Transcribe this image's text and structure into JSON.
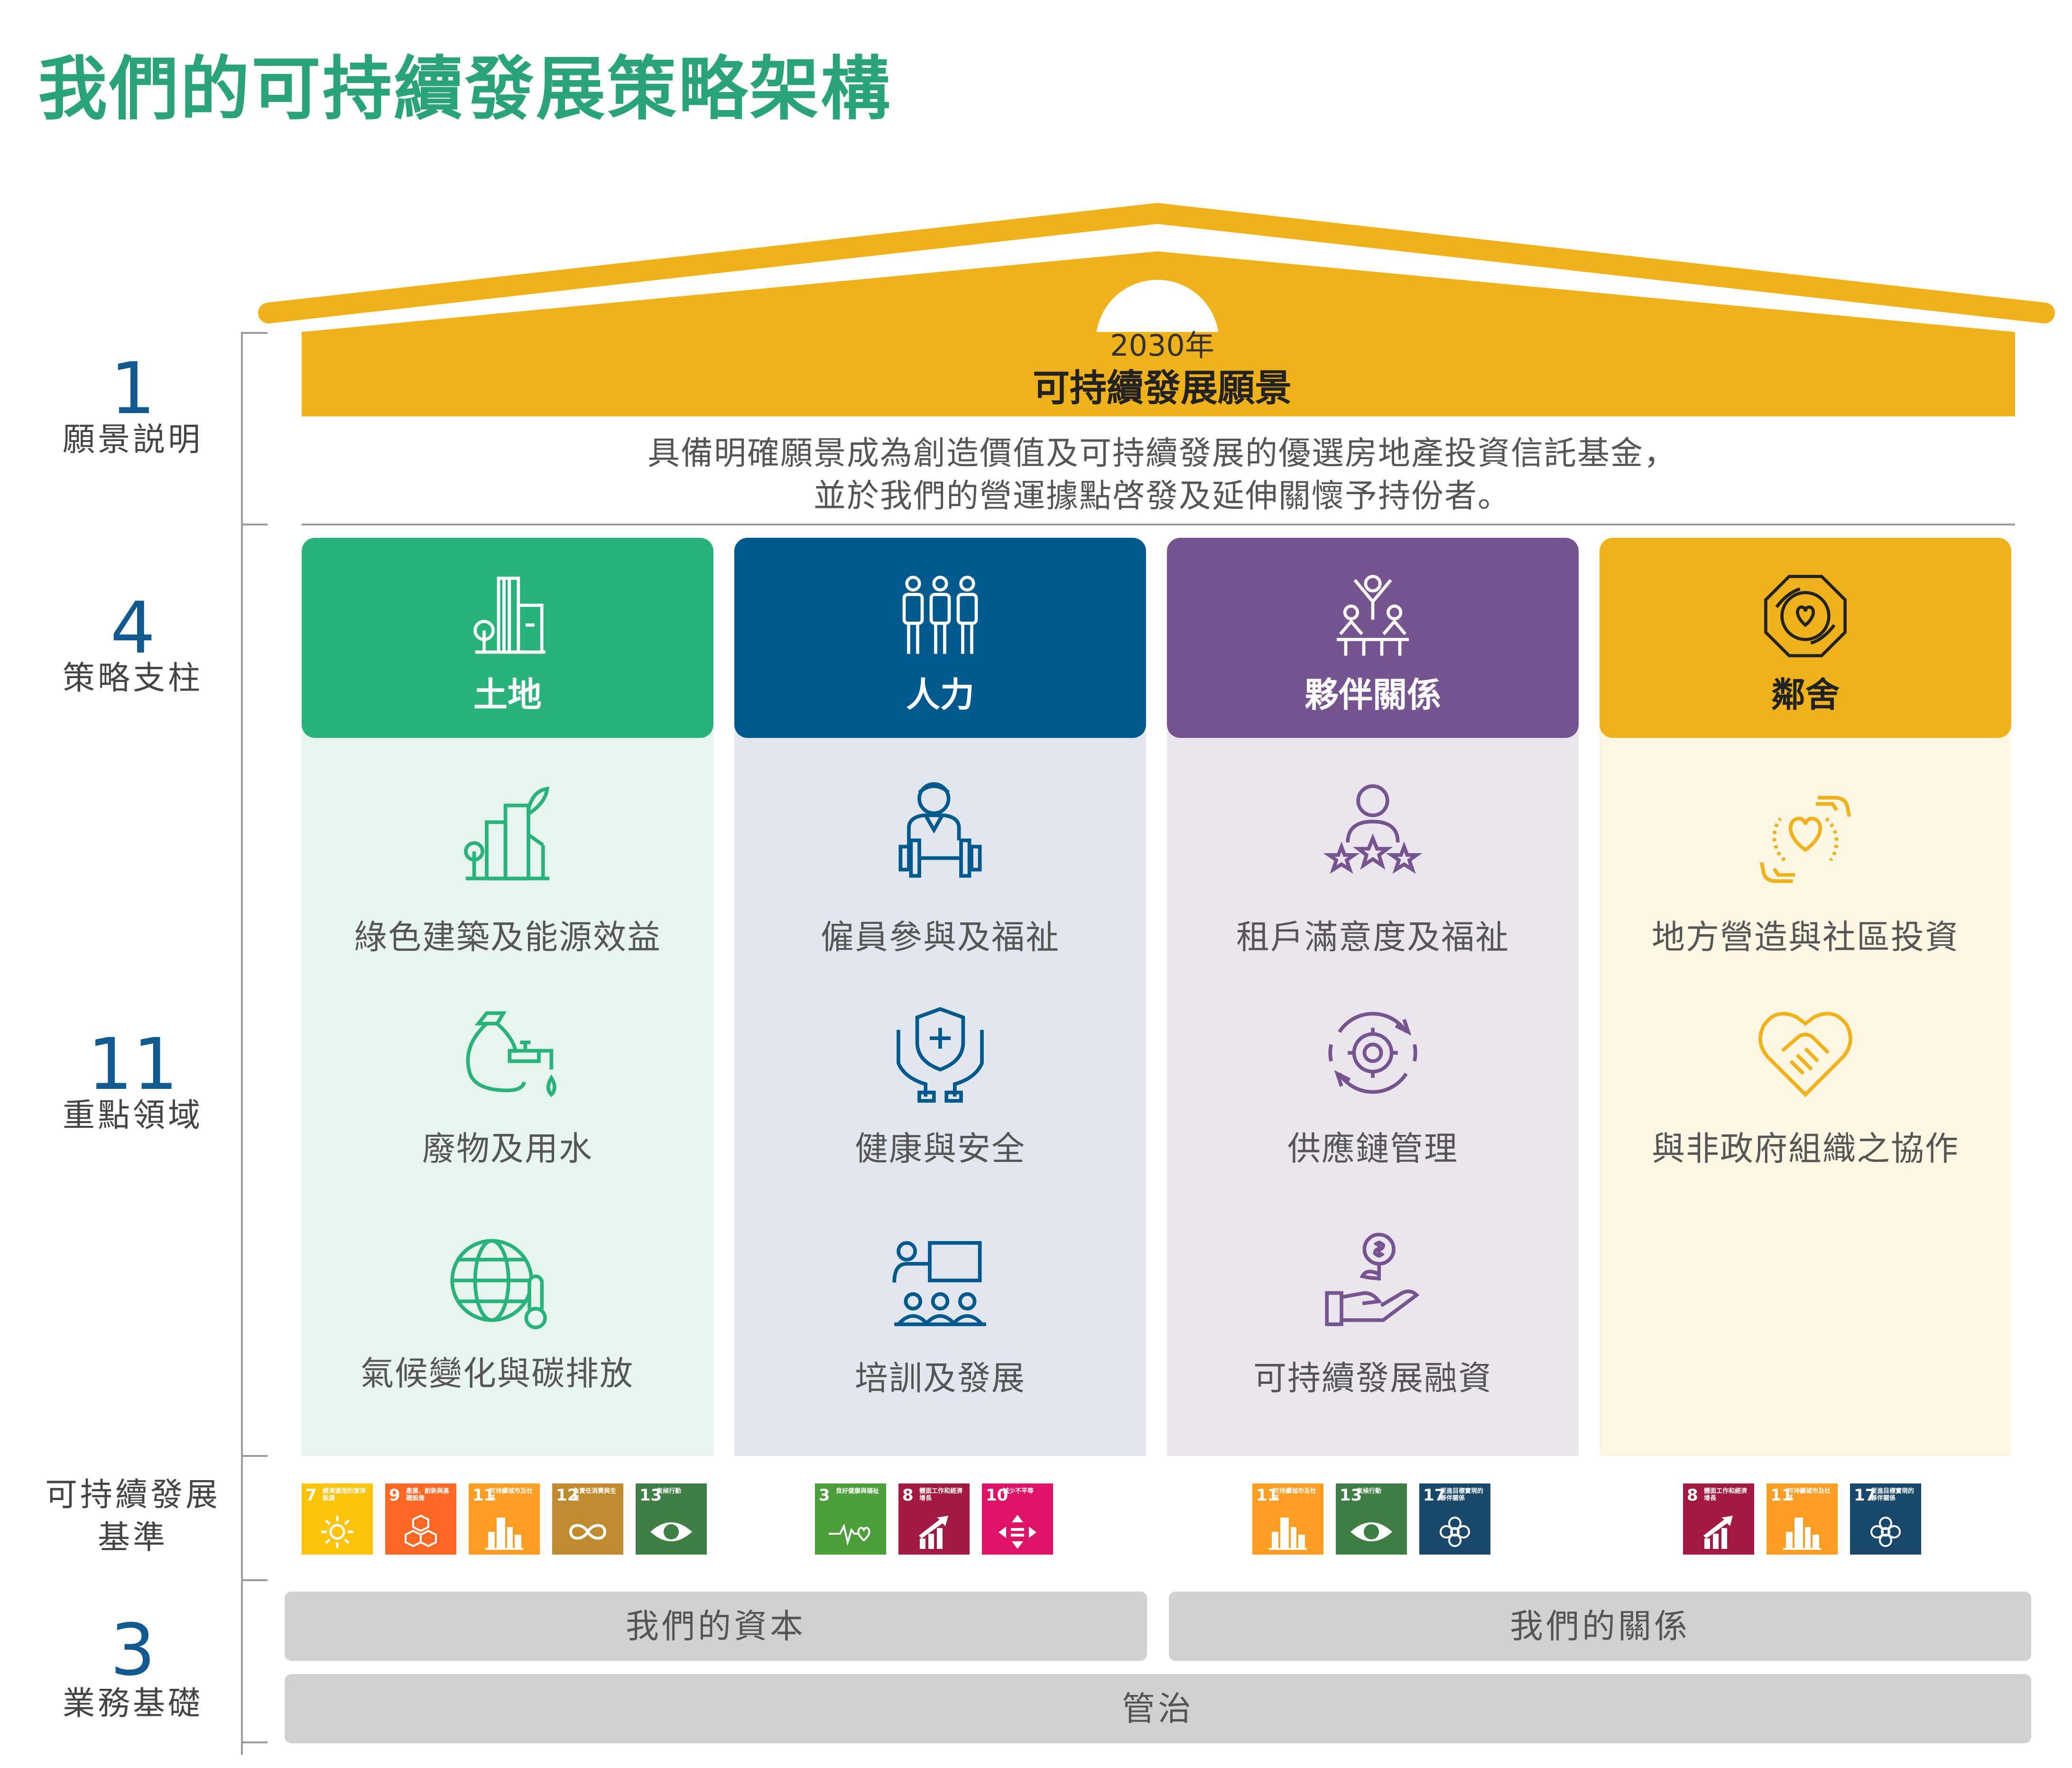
{
  "page": {
    "title": "我們的可持續發展策略架構"
  },
  "colors": {
    "title_green": "#2aa37a",
    "gold": "#f0b21c",
    "land_green": "#2ab27b",
    "people_blue": "#00598c",
    "partner_purple": "#75548f",
    "neighbour_gold": "#f0b21c",
    "label_blue": "#11598f",
    "foundation_grey": "#d2d1d1"
  },
  "vision": {
    "year": "2030年",
    "title": "可持續發展願景",
    "statement_line1": "具備明確願景成為創造價值及可持續發展的優選房地產投資信託基金，",
    "statement_line2": "並於我們的營運據點啓發及延伸關懷予持份者。"
  },
  "left_labels": [
    {
      "number": "1",
      "text": "願景説明"
    },
    {
      "number": "4",
      "text": "策略支柱"
    },
    {
      "number": "11",
      "text": "重點領域"
    },
    {
      "number": "",
      "text_line1": "可持續發展",
      "text_line2": "基準"
    },
    {
      "number": "3",
      "text": "業務基礎"
    }
  ],
  "pillars": [
    {
      "name": "土地",
      "icon": "building-tree-icon",
      "focus_areas": [
        {
          "label": "綠色建築及能源效益",
          "icon": "green-building-icon"
        },
        {
          "label": "廢物及用水",
          "icon": "waste-water-icon"
        },
        {
          "label": "氣候變化與碳排放",
          "icon": "globe-thermometer-icon"
        }
      ],
      "sdgs": [
        {
          "num": "7",
          "name": "經濟適用的潔淨能源",
          "color": "#fcc30b",
          "icon": "sun-icon"
        },
        {
          "num": "9",
          "name": "產業、創新與基礎設施",
          "color": "#fd6925",
          "icon": "cubes-icon"
        },
        {
          "num": "11",
          "name": "可持續城市及社區",
          "color": "#fd9d24",
          "icon": "city-icon"
        },
        {
          "num": "12",
          "name": "負責任消費與生產",
          "color": "#bf8b2e",
          "icon": "infinity-icon"
        },
        {
          "num": "13",
          "name": "氣候行動",
          "color": "#3f7e44",
          "icon": "eye-globe-icon"
        }
      ]
    },
    {
      "name": "人力",
      "icon": "people-group-icon",
      "focus_areas": [
        {
          "label": "僱員參與及福祉",
          "icon": "employee-dumbbell-icon"
        },
        {
          "label": "健康與安全",
          "icon": "shield-hands-icon"
        },
        {
          "label": "培訓及發展",
          "icon": "training-icon"
        }
      ],
      "sdgs": [
        {
          "num": "3",
          "name": "良好健康與福祉",
          "color": "#4c9f38",
          "icon": "heartbeat-icon"
        },
        {
          "num": "8",
          "name": "體面工作和經濟增長",
          "color": "#a21942",
          "icon": "growth-chart-icon"
        },
        {
          "num": "10",
          "name": "減少不平等",
          "color": "#dd1367",
          "icon": "equality-icon"
        }
      ]
    },
    {
      "name": "夥伴關係",
      "icon": "partnership-people-icon",
      "focus_areas": [
        {
          "label": "租戶滿意度及福祉",
          "icon": "person-stars-icon"
        },
        {
          "label": "供應鏈管理",
          "icon": "gear-cycle-icon"
        },
        {
          "label": "可持續發展融資",
          "icon": "hand-coin-icon"
        }
      ],
      "sdgs": [
        {
          "num": "11",
          "name": "可持續城市及社區",
          "color": "#fd9d24",
          "icon": "city-icon"
        },
        {
          "num": "13",
          "name": "氣候行動",
          "color": "#3f7e44",
          "icon": "eye-globe-icon"
        },
        {
          "num": "17",
          "name": "促進目標實現的夥伴關係",
          "color": "#19486a",
          "icon": "flower-icon"
        }
      ]
    },
    {
      "name": "鄰舍",
      "icon": "community-circle-icon",
      "focus_areas": [
        {
          "label": "地方營造與社區投資",
          "icon": "hands-heart-icon"
        },
        {
          "label": "與非政府組織之協作",
          "icon": "handshake-heart-icon"
        }
      ],
      "sdgs": [
        {
          "num": "8",
          "name": "體面工作和經濟增長",
          "color": "#a21942",
          "icon": "growth-chart-icon"
        },
        {
          "num": "11",
          "name": "可持續城市及社區",
          "color": "#fd9d24",
          "icon": "city-icon"
        },
        {
          "num": "17",
          "name": "促進目標實現的夥伴關係",
          "color": "#19486a",
          "icon": "flower-icon"
        }
      ]
    }
  ],
  "foundations": {
    "capital": "我們的資本",
    "relationships": "我們的關係",
    "governance": "管治"
  }
}
